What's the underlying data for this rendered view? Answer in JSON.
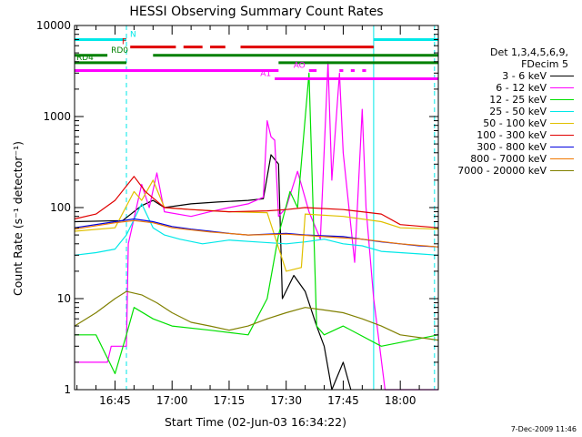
{
  "chart_data": {
    "type": "line",
    "title": "HESSI Observing Summary Count Rates",
    "xlabel": "Start Time (02-Jun-03 16:34:22)",
    "ylabel": "Count Rate (s⁻¹ detector⁻¹)",
    "yscale": "log",
    "ylim": [
      1,
      10000
    ],
    "xlim": [
      "16:34:22",
      "18:10:00"
    ],
    "x_ticks": [
      "16:45",
      "17:00",
      "17:15",
      "17:30",
      "17:45",
      "18:00"
    ],
    "y_ticks": [
      "1",
      "10",
      "100",
      "1000",
      "10000"
    ],
    "legend_title": [
      "Det 1,3,4,5,6,9,",
      "FDecim 5"
    ],
    "legend_position": "right",
    "series": [
      {
        "name": "3 - 6 keV",
        "color": "#000000",
        "points": [
          [
            "16:34:22",
            70
          ],
          [
            "16:47:00",
            72
          ],
          [
            "16:52:00",
            105
          ],
          [
            "16:55:00",
            120
          ],
          [
            "16:58:00",
            100
          ],
          [
            "17:05:00",
            110
          ],
          [
            "17:12:00",
            115
          ],
          [
            "17:20:00",
            120
          ],
          [
            "17:24:00",
            125
          ],
          [
            "17:26:00",
            380
          ],
          [
            "17:28:00",
            300
          ],
          [
            "17:29:00",
            10
          ],
          [
            "17:32:00",
            18
          ],
          [
            "17:35:00",
            12
          ],
          [
            "17:38:00",
            5
          ],
          [
            "17:40:00",
            3
          ],
          [
            "17:42:00",
            1
          ],
          [
            "17:45:00",
            2
          ],
          [
            "17:47:00",
            1
          ]
        ]
      },
      {
        "name": "6 - 12 keV",
        "color": "#ff00ff",
        "points": [
          [
            "16:34:22",
            2
          ],
          [
            "16:43:00",
            2
          ],
          [
            "16:44:00",
            3
          ],
          [
            "16:45:00",
            3
          ],
          [
            "16:48:00",
            3
          ],
          [
            "16:48:30",
            40
          ],
          [
            "16:52:00",
            180
          ],
          [
            "16:54:00",
            100
          ],
          [
            "16:56:00",
            240
          ],
          [
            "16:58:00",
            90
          ],
          [
            "17:05:00",
            80
          ],
          [
            "17:10:00",
            90
          ],
          [
            "17:15:00",
            100
          ],
          [
            "17:20:00",
            110
          ],
          [
            "17:24:00",
            130
          ],
          [
            "17:25:00",
            900
          ],
          [
            "17:26:00",
            600
          ],
          [
            "17:27:00",
            550
          ],
          [
            "17:28:00",
            80
          ],
          [
            "17:30:00",
            100
          ],
          [
            "17:33:00",
            250
          ],
          [
            "17:36:00",
            90
          ],
          [
            "17:39:00",
            45
          ],
          [
            "17:41:00",
            4000
          ],
          [
            "17:42:00",
            200
          ],
          [
            "17:44:00",
            3000
          ],
          [
            "17:45:00",
            400
          ],
          [
            "17:48:00",
            25
          ],
          [
            "17:50:00",
            1200
          ],
          [
            "17:51:00",
            100
          ],
          [
            "17:53:00",
            10
          ],
          [
            "17:56:00",
            1
          ],
          [
            "18:10:00",
            1
          ]
        ]
      },
      {
        "name": "12 - 25 keV",
        "color": "#00e000",
        "points": [
          [
            "16:34:22",
            4
          ],
          [
            "16:40:00",
            4
          ],
          [
            "16:45:00",
            1.5
          ],
          [
            "16:48:00",
            4
          ],
          [
            "16:50:00",
            8
          ],
          [
            "16:55:00",
            6
          ],
          [
            "17:00:00",
            5
          ],
          [
            "17:10:00",
            4.5
          ],
          [
            "17:20:00",
            4
          ],
          [
            "17:25:00",
            10
          ],
          [
            "17:28:00",
            50
          ],
          [
            "17:31:00",
            150
          ],
          [
            "17:33:00",
            100
          ],
          [
            "17:36:00",
            3000
          ],
          [
            "17:38:00",
            5
          ],
          [
            "17:40:00",
            4
          ],
          [
            "17:45:00",
            5
          ],
          [
            "17:55:00",
            3
          ],
          [
            "18:10:00",
            4
          ]
        ]
      },
      {
        "name": "25 - 50 keV",
        "color": "#00e8e8",
        "points": [
          [
            "16:34:22",
            30
          ],
          [
            "16:40:00",
            32
          ],
          [
            "16:45:00",
            35
          ],
          [
            "16:48:00",
            50
          ],
          [
            "16:52:00",
            110
          ],
          [
            "16:55:00",
            60
          ],
          [
            "16:58:00",
            50
          ],
          [
            "17:02:00",
            45
          ],
          [
            "17:08:00",
            40
          ],
          [
            "17:15:00",
            44
          ],
          [
            "17:22:00",
            42
          ],
          [
            "17:30:00",
            40
          ],
          [
            "17:35:00",
            42
          ],
          [
            "17:40:00",
            45
          ],
          [
            "17:45:00",
            40
          ],
          [
            "17:50:00",
            38
          ],
          [
            "17:55:00",
            33
          ],
          [
            "18:05:00",
            31
          ],
          [
            "18:10:00",
            30
          ]
        ]
      },
      {
        "name": "50 - 100 keV",
        "color": "#e0c000",
        "points": [
          [
            "16:34:22",
            55
          ],
          [
            "16:45:00",
            60
          ],
          [
            "16:50:00",
            150
          ],
          [
            "16:52:00",
            120
          ],
          [
            "16:55:00",
            200
          ],
          [
            "16:58:00",
            100
          ],
          [
            "17:05:00",
            95
          ],
          [
            "17:15:00",
            90
          ],
          [
            "17:25:00",
            88
          ],
          [
            "17:30:00",
            20
          ],
          [
            "17:34:00",
            22
          ],
          [
            "17:35:00",
            85
          ],
          [
            "17:45:00",
            80
          ],
          [
            "17:55:00",
            70
          ],
          [
            "18:00:00",
            60
          ],
          [
            "18:10:00",
            58
          ]
        ]
      },
      {
        "name": "100 - 300 keV",
        "color": "#e00000",
        "points": [
          [
            "16:34:22",
            75
          ],
          [
            "16:40:00",
            85
          ],
          [
            "16:45:00",
            120
          ],
          [
            "16:50:00",
            220
          ],
          [
            "16:53:00",
            150
          ],
          [
            "16:58:00",
            100
          ],
          [
            "17:05:00",
            95
          ],
          [
            "17:15:00",
            90
          ],
          [
            "17:25:00",
            92
          ],
          [
            "17:30:00",
            95
          ],
          [
            "17:35:00",
            100
          ],
          [
            "17:45:00",
            95
          ],
          [
            "17:50:00",
            90
          ],
          [
            "17:55:00",
            85
          ],
          [
            "18:00:00",
            65
          ],
          [
            "18:10:00",
            60
          ]
        ]
      },
      {
        "name": "300 - 800 keV",
        "color": "#0000e0",
        "points": [
          [
            "16:34:22",
            60
          ],
          [
            "16:45:00",
            70
          ],
          [
            "16:50:00",
            75
          ],
          [
            "16:55:00",
            70
          ],
          [
            "17:00:00",
            62
          ],
          [
            "17:05:00",
            58
          ],
          [
            "17:10:00",
            55
          ],
          [
            "17:15:00",
            52
          ],
          [
            "17:20:00",
            50
          ],
          [
            "17:30:00",
            52
          ],
          [
            "17:35:00",
            50
          ],
          [
            "17:45:00",
            48
          ],
          [
            "17:55:00",
            42
          ],
          [
            "18:05:00",
            38
          ],
          [
            "18:10:00",
            37
          ]
        ]
      },
      {
        "name": "800 - 7000 keV",
        "color": "#f07800",
        "points": [
          [
            "16:34:22",
            58
          ],
          [
            "16:45:00",
            68
          ],
          [
            "16:50:00",
            72
          ],
          [
            "16:55:00",
            68
          ],
          [
            "17:00:00",
            60
          ],
          [
            "17:10:00",
            54
          ],
          [
            "17:20:00",
            50
          ],
          [
            "17:30:00",
            51
          ],
          [
            "17:40:00",
            48
          ],
          [
            "17:50:00",
            45
          ],
          [
            "18:00:00",
            40
          ],
          [
            "18:10:00",
            37
          ]
        ]
      },
      {
        "name": "7000 - 20000 keV",
        "color": "#808000",
        "points": [
          [
            "16:34:22",
            5
          ],
          [
            "16:40:00",
            7
          ],
          [
            "16:45:00",
            10
          ],
          [
            "16:48:00",
            12
          ],
          [
            "16:52:00",
            11
          ],
          [
            "16:56:00",
            9
          ],
          [
            "17:00:00",
            7
          ],
          [
            "17:05:00",
            5.5
          ],
          [
            "17:10:00",
            5
          ],
          [
            "17:15:00",
            4.5
          ],
          [
            "17:20:00",
            5
          ],
          [
            "17:25:00",
            6
          ],
          [
            "17:30:00",
            7
          ],
          [
            "17:35:00",
            8
          ],
          [
            "17:40:00",
            7.5
          ],
          [
            "17:45:00",
            7
          ],
          [
            "17:50:00",
            6
          ],
          [
            "17:55:00",
            5
          ],
          [
            "18:00:00",
            4
          ],
          [
            "18:10:00",
            3.5
          ]
        ]
      }
    ],
    "flags": [
      {
        "label": "N",
        "color": "#00e8e8",
        "level": 7000,
        "segments": [
          [
            "16:34:22",
            "16:48:00"
          ],
          [
            "17:53:00",
            "18:10:00"
          ]
        ]
      },
      {
        "label": "F",
        "color": "#e00000",
        "level": 5800,
        "segments": [
          [
            "16:49:00",
            "17:01:00"
          ],
          [
            "17:03:00",
            "17:08:00"
          ],
          [
            "17:10:00",
            "17:14:00"
          ],
          [
            "17:18:00",
            "17:53:00"
          ]
        ]
      },
      {
        "label": "RD0",
        "color": "#008000",
        "level": 4700,
        "segments": [
          [
            "16:34:22",
            "16:43:00"
          ],
          [
            "16:55:00",
            "18:10:00"
          ]
        ]
      },
      {
        "label": "RD4",
        "color": "#008000",
        "level": 3900,
        "segments": [
          [
            "16:34:22",
            "16:48:00"
          ],
          [
            "17:28:00",
            "18:10:00"
          ]
        ]
      },
      {
        "label": "AO",
        "color": "#ff00ff",
        "level": 3200,
        "segments": [
          [
            "16:34:22",
            "17:28:00"
          ],
          [
            "17:36:00",
            "17:38:00"
          ],
          [
            "17:44:00",
            "17:45:00"
          ],
          [
            "17:47:00",
            "17:48:00"
          ],
          [
            "17:50:00",
            "17:51:00"
          ]
        ]
      },
      {
        "label": "A1",
        "color": "#ff00ff",
        "level": 2600,
        "segments": [
          [
            "17:27:00",
            "18:10:00"
          ]
        ]
      }
    ],
    "vertical_lines": [
      {
        "time": "16:48:00",
        "color": "#00e8e8",
        "style": "dashed"
      },
      {
        "time": "17:53:00",
        "color": "#00e8e8",
        "style": "solid"
      },
      {
        "time": "18:09:00",
        "color": "#00e8e8",
        "style": "dashed"
      }
    ],
    "timestamp": "7-Dec-2009 11:46"
  }
}
